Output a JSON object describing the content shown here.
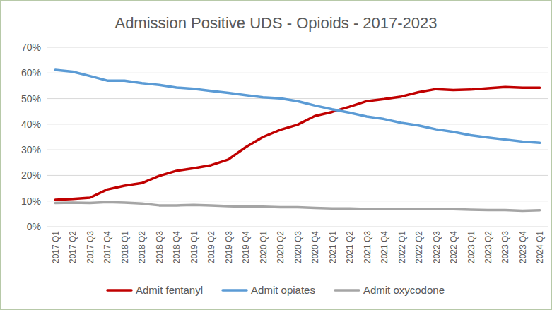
{
  "chart_data": {
    "type": "line",
    "title": "Admission Positive UDS - Opioids - 2017-2023",
    "categories": [
      "2017 Q1",
      "2017 Q2",
      "2017 Q3",
      "2017 Q4",
      "2018 Q1",
      "2018 Q2",
      "2018 Q3",
      "2018 Q4",
      "2019 Q1",
      "2019 Q2",
      "2019 Q3",
      "2019 Q4",
      "2020 Q1",
      "2020 Q2",
      "2020 Q3",
      "2020 Q4",
      "2021 Q1",
      "2021 Q2",
      "2021 Q3",
      "2021 Q4",
      "2022 Q1",
      "2022 Q2",
      "2022 Q3",
      "2022 Q4",
      "2023 Q1",
      "2023 Q2",
      "2023 Q3",
      "2023 Q4",
      "2024 Q1"
    ],
    "series": [
      {
        "name": "Admit fentanyl",
        "color": "#c00000",
        "values": [
          10.5,
          10.8,
          11.3,
          14.5,
          16.0,
          17.0,
          19.8,
          21.8,
          22.8,
          24.0,
          26.2,
          31.0,
          35.0,
          37.8,
          39.8,
          43.2,
          44.8,
          46.8,
          49.0,
          49.8,
          50.8,
          52.5,
          53.7,
          53.3,
          53.5,
          54.0,
          54.5,
          54.2,
          54.2
        ]
      },
      {
        "name": "Admit opiates",
        "color": "#5b9bd5",
        "values": [
          61.2,
          60.5,
          58.8,
          57.0,
          57.0,
          56.0,
          55.3,
          54.3,
          53.8,
          53.0,
          52.2,
          51.3,
          50.5,
          50.1,
          49.0,
          47.3,
          45.8,
          44.5,
          43.0,
          42.0,
          40.5,
          39.5,
          38.0,
          37.0,
          35.7,
          34.8,
          34.0,
          33.2,
          32.7
        ]
      },
      {
        "name": "Admit oxycodone",
        "color": "#a5a5a5",
        "values": [
          9.2,
          9.4,
          9.2,
          9.6,
          9.4,
          9.0,
          8.3,
          8.3,
          8.5,
          8.3,
          8.0,
          7.8,
          7.8,
          7.6,
          7.6,
          7.3,
          7.1,
          7.1,
          6.9,
          6.8,
          6.8,
          6.8,
          6.8,
          6.8,
          6.6,
          6.5,
          6.5,
          6.2,
          6.4
        ]
      }
    ],
    "ylim": [
      0,
      70
    ],
    "yticks": [
      {
        "value": 0,
        "label": "0%"
      },
      {
        "value": 10,
        "label": "10%"
      },
      {
        "value": 20,
        "label": "20%"
      },
      {
        "value": 30,
        "label": "30%"
      },
      {
        "value": 40,
        "label": "40%"
      },
      {
        "value": 50,
        "label": "50%"
      },
      {
        "value": 60,
        "label": "60%"
      },
      {
        "value": 70,
        "label": "70%"
      }
    ],
    "grid": true,
    "legend": "bottom"
  }
}
